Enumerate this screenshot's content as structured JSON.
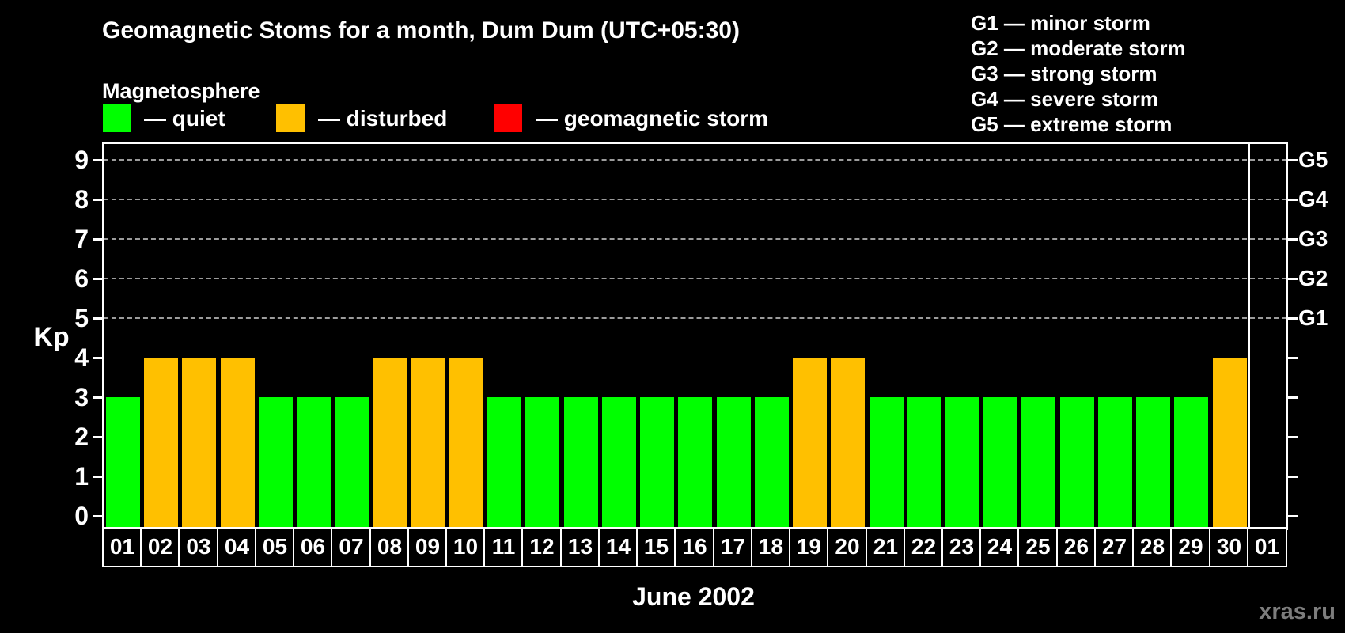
{
  "title": "Geomagnetic Stoms for a month, Dum Dum (UTC+05:30)",
  "legend": {
    "heading": "Magnetosphere",
    "items": [
      {
        "name": "quiet",
        "label": "— quiet",
        "color": "#00ff00"
      },
      {
        "name": "disturbed",
        "label": "— disturbed",
        "color": "#ffc000"
      },
      {
        "name": "geomagnetic-storm",
        "label": "— geomagnetic storm",
        "color": "#ff0000"
      }
    ]
  },
  "g_scale_legend": {
    "lines": [
      "G1 — minor storm",
      "G2 — moderate storm",
      "G3 — strong storm",
      "G4 — severe storm",
      "G5 — extreme storm"
    ]
  },
  "watermark": "xras.ru",
  "chart_data": {
    "type": "bar",
    "title": "Geomagnetic Stoms for a month, Dum Dum (UTC+05:30)",
    "xlabel": "June 2002",
    "ylabel": "Kp",
    "ylim": [
      0,
      9
    ],
    "yticks": [
      0,
      1,
      2,
      3,
      4,
      5,
      6,
      7,
      8,
      9
    ],
    "gridlines_at": [
      5,
      6,
      7,
      8,
      9
    ],
    "grid_style": "dashed horizontal gray lines only at Kp 5–9 (storm levels)",
    "right_axis": [
      {
        "value": 5,
        "label": "G1"
      },
      {
        "value": 6,
        "label": "G2"
      },
      {
        "value": 7,
        "label": "G3"
      },
      {
        "value": 8,
        "label": "G4"
      },
      {
        "value": 9,
        "label": "G5"
      }
    ],
    "categories": [
      "01",
      "02",
      "03",
      "04",
      "05",
      "06",
      "07",
      "08",
      "09",
      "10",
      "11",
      "12",
      "13",
      "14",
      "15",
      "16",
      "17",
      "18",
      "19",
      "20",
      "21",
      "22",
      "23",
      "24",
      "25",
      "26",
      "27",
      "28",
      "29",
      "30",
      "01"
    ],
    "values": [
      3,
      4,
      4,
      4,
      3,
      3,
      3,
      4,
      4,
      4,
      3,
      3,
      3,
      3,
      3,
      3,
      3,
      3,
      4,
      4,
      3,
      3,
      3,
      3,
      3,
      3,
      3,
      3,
      3,
      4,
      null
    ],
    "statuses": [
      "quiet",
      "disturbed",
      "disturbed",
      "disturbed",
      "quiet",
      "quiet",
      "quiet",
      "disturbed",
      "disturbed",
      "disturbed",
      "quiet",
      "quiet",
      "quiet",
      "quiet",
      "quiet",
      "quiet",
      "quiet",
      "quiet",
      "disturbed",
      "disturbed",
      "quiet",
      "quiet",
      "quiet",
      "quiet",
      "quiet",
      "quiet",
      "quiet",
      "quiet",
      "quiet",
      "disturbed",
      null
    ],
    "status_colors": {
      "quiet": "#00ff00",
      "disturbed": "#ffc000",
      "storm": "#ff0000"
    },
    "month_separator_after_index": 30,
    "legend_position": "top-left and top-right, outside plot"
  }
}
